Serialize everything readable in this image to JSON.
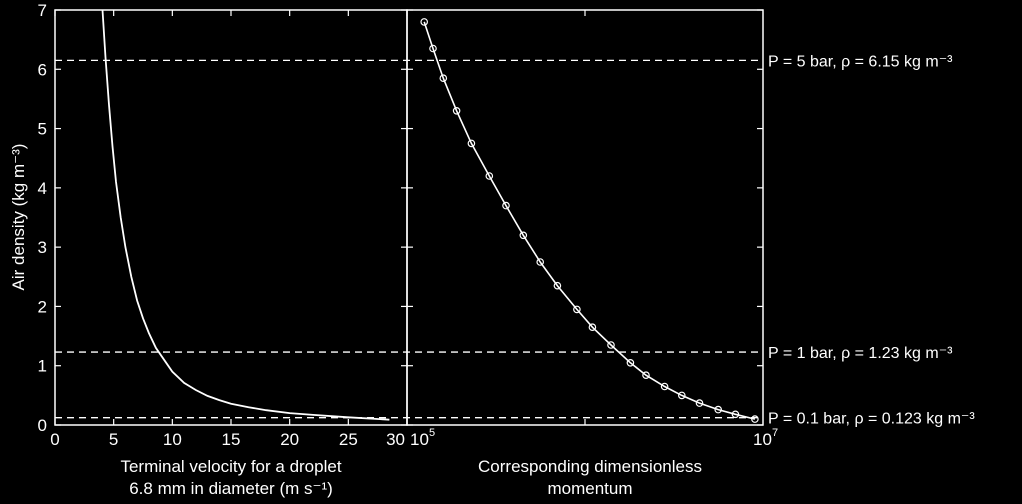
{
  "chart_data": [
    {
      "type": "line",
      "ylabel": "Air density (kg m⁻³)",
      "xlabel_line1": "Terminal velocity for a droplet",
      "xlabel_line2": "6.8 mm in diameter (m s⁻¹)",
      "xlim": [
        0,
        30
      ],
      "ylim": [
        0,
        7
      ],
      "xticks": [
        "0",
        "5",
        "10",
        "15",
        "20",
        "25",
        "30"
      ],
      "yticks": [
        "0",
        "1",
        "2",
        "3",
        "4",
        "5",
        "6",
        "7"
      ],
      "series": [
        {
          "x": [
            28.5,
            25,
            22,
            20,
            18,
            16.5,
            15,
            14,
            13,
            12,
            11,
            10,
            9.3,
            8.6,
            8.0,
            7.5,
            7.0,
            6.5,
            6.0,
            5.6,
            5.2,
            4.9,
            4.6,
            4.3,
            4.05
          ],
          "y": [
            0.09,
            0.13,
            0.17,
            0.2,
            0.25,
            0.3,
            0.36,
            0.42,
            0.49,
            0.59,
            0.71,
            0.9,
            1.1,
            1.3,
            1.55,
            1.8,
            2.1,
            2.5,
            3.0,
            3.5,
            4.1,
            4.7,
            5.4,
            6.2,
            7.0
          ]
        }
      ]
    },
    {
      "type": "line",
      "xlabel_line1": "Corresponding dimensionless",
      "xlabel_line2": "momentum",
      "xscale": "log",
      "xlim": [
        100000,
        10000000
      ],
      "ylim": [
        0,
        7
      ],
      "xtick_left": "10⁵",
      "xtick_right": "10⁷",
      "series": [
        {
          "marker": "circle",
          "x": [
            9000000,
            7000000,
            5600000,
            4400000,
            3500000,
            2800000,
            2200000,
            1800000,
            1400000,
            1100000,
            900000,
            700000,
            560000,
            450000,
            360000,
            290000,
            230000,
            190000,
            160000,
            140000,
            125000
          ],
          "y": [
            0.1,
            0.18,
            0.26,
            0.37,
            0.5,
            0.65,
            0.84,
            1.05,
            1.35,
            1.65,
            1.95,
            2.35,
            2.75,
            3.2,
            3.7,
            4.2,
            4.75,
            5.3,
            5.85,
            6.35,
            6.8
          ]
        }
      ]
    }
  ],
  "reference_lines": [
    {
      "y": 6.15,
      "label": "P = 5 bar, ρ = 6.15 kg m⁻³"
    },
    {
      "y": 1.23,
      "label": "P = 1 bar, ρ = 1.23 kg m⁻³"
    },
    {
      "y": 0.123,
      "label": "P = 0.1 bar, ρ = 0.123 kg m⁻³"
    }
  ],
  "colors": {
    "background": "#000000",
    "foreground": "#ffffff"
  }
}
